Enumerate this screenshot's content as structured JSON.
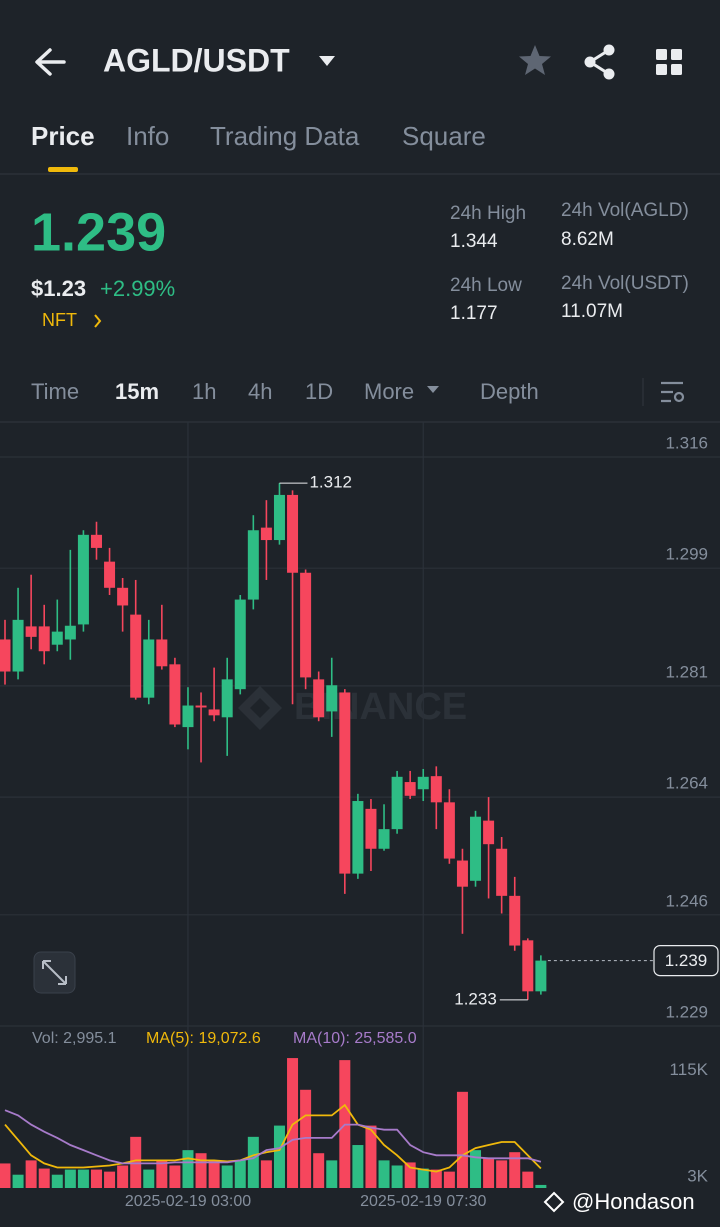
{
  "header": {
    "pair": "AGLD/USDT"
  },
  "tabs": [
    "Price",
    "Info",
    "Trading Data",
    "Square"
  ],
  "ticker": {
    "price": "1.239",
    "usd": "$1.23",
    "change": "+2.99%",
    "tag": "NFT"
  },
  "stats": [
    {
      "label": "24h High",
      "value": "1.344"
    },
    {
      "label": "24h Vol(AGLD)",
      "value": "8.62M"
    },
    {
      "label": "24h Low",
      "value": "1.177"
    },
    {
      "label": "24h Vol(USDT)",
      "value": "11.07M"
    }
  ],
  "intervals": [
    "Time",
    "15m",
    "1h",
    "4h",
    "1D",
    "More",
    "Depth"
  ],
  "watermark": "BINANCE",
  "credit": "@Hondason",
  "chart_data": [
    {
      "type": "candlestick",
      "up_color": "#2ebd85",
      "down_color": "#f6465d",
      "grid": true,
      "categories": [
        null,
        null,
        null,
        null,
        null,
        null,
        null,
        null,
        null,
        null,
        null,
        null,
        null,
        null,
        "2025-02-19 03:00",
        null,
        null,
        null,
        null,
        null,
        null,
        null,
        null,
        null,
        null,
        null,
        null,
        null,
        null,
        null,
        null,
        null,
        "2025-02-19 07:30",
        null,
        null,
        null,
        null,
        null,
        null,
        null,
        null,
        null
      ],
      "open": [
        1.2881,
        1.2832,
        1.2901,
        1.2901,
        1.2873,
        1.2881,
        1.2904,
        1.3041,
        1.3,
        1.296,
        1.2919,
        1.2792,
        1.2881,
        1.2843,
        1.2747,
        1.278,
        1.2774,
        1.2762,
        1.2805,
        1.2942,
        1.3052,
        1.3033,
        1.3102,
        1.2983,
        1.282,
        1.2771,
        1.28,
        1.2523,
        1.2622,
        1.2561,
        1.2591,
        1.2663,
        1.2652,
        1.2672,
        1.2632,
        1.2543,
        1.2512,
        1.2604,
        1.2561,
        1.2489,
        1.2421,
        1.2343
      ],
      "high": [
        1.2911,
        1.296,
        1.298,
        1.2934,
        1.2942,
        1.3018,
        1.3048,
        1.3061,
        1.3021,
        1.2975,
        1.2972,
        1.2911,
        1.2934,
        1.2853,
        1.2808,
        1.28,
        1.2838,
        1.2853,
        1.2949,
        1.3071,
        1.3094,
        1.312,
        1.3109,
        1.2988,
        1.2832,
        1.2853,
        1.2805,
        1.2645,
        1.2637,
        1.2629,
        1.268,
        1.268,
        1.2683,
        1.2687,
        1.2652,
        1.2561,
        1.2619,
        1.264,
        1.2579,
        1.2518,
        1.2424,
        1.2398
      ],
      "low": [
        1.2812,
        1.282,
        1.2866,
        1.2843,
        1.2863,
        1.285,
        1.2893,
        1.3003,
        1.2949,
        1.2893,
        1.2789,
        1.2782,
        1.2835,
        1.2747,
        1.2713,
        1.2693,
        1.2756,
        1.2703,
        1.2797,
        1.2927,
        1.2972,
        1.3026,
        1.2782,
        1.2805,
        1.2756,
        1.2732,
        1.2492,
        1.2515,
        1.2527,
        1.2558,
        1.2584,
        1.2637,
        1.2634,
        1.2591,
        1.2538,
        1.2431,
        1.2503,
        1.2485,
        1.2462,
        1.2405,
        1.233,
        1.2338
      ],
      "close": [
        1.2832,
        1.2911,
        1.2885,
        1.2863,
        1.2893,
        1.2902,
        1.3041,
        1.3021,
        1.296,
        1.2933,
        1.2792,
        1.2881,
        1.284,
        1.2751,
        1.278,
        1.2777,
        1.2765,
        1.282,
        1.2942,
        1.3048,
        1.3033,
        1.3102,
        1.2983,
        1.2823,
        1.2762,
        1.2811,
        1.2523,
        1.2634,
        1.2561,
        1.2591,
        1.2671,
        1.2642,
        1.2671,
        1.2632,
        1.2546,
        1.2503,
        1.261,
        1.2568,
        1.2489,
        1.2413,
        1.2343,
        1.239
      ],
      "ylim": [
        1.229,
        1.316
      ],
      "yticks": [
        1.316,
        1.299,
        1.281,
        1.264,
        1.246,
        1.229
      ],
      "max_label": 1.312,
      "min_label": 1.233,
      "last_price": 1.239
    },
    {
      "type": "bar",
      "legend": [
        "Vol: 2,995.1",
        "MA(5): 19,072.6",
        "MA(10): 25,585.0"
      ],
      "legend_color": "#848e9c",
      "values": [
        24000,
        13000,
        27000,
        19000,
        13000,
        18000,
        18000,
        18000,
        16000,
        22000,
        50000,
        18000,
        27000,
        22000,
        37000,
        34000,
        27000,
        22000,
        27000,
        50000,
        27000,
        61000,
        127000,
        96000,
        34000,
        27000,
        125000,
        42000,
        61000,
        27000,
        22000,
        25000,
        19000,
        18000,
        16000,
        94000,
        37000,
        29000,
        27000,
        35000,
        16000,
        2995.1
      ],
      "series": [
        {
          "color": "#f0b90b",
          "values": [
            62000,
            47000,
            32000,
            24000,
            20000,
            20000,
            20000,
            21000,
            22000,
            24000,
            27000,
            27000,
            27000,
            27000,
            29000,
            27000,
            27000,
            26000,
            27000,
            32000,
            35000,
            37000,
            62000,
            71000,
            71000,
            71000,
            81000,
            62000,
            57000,
            42000,
            32000,
            20000,
            18000,
            16000,
            20000,
            32000,
            39000,
            42000,
            45000,
            45000,
            32000,
            19072.6
          ]
        },
        {
          "color": "#a77bca",
          "values": [
            76000,
            71000,
            62000,
            55000,
            49000,
            42000,
            37000,
            32000,
            27000,
            24000,
            24000,
            24000,
            24000,
            25000,
            25000,
            25000,
            25000,
            25000,
            27000,
            29000,
            37000,
            39000,
            47000,
            49000,
            49000,
            49000,
            62000,
            62000,
            59000,
            57000,
            57000,
            42000,
            35000,
            32000,
            32000,
            32000,
            30000,
            29000,
            29000,
            29000,
            29000,
            25585
          ]
        }
      ],
      "ylim": [
        0,
        130000
      ],
      "yticks": [
        {
          "value": 115000,
          "label": "115K"
        },
        {
          "value": 3000,
          "label": "3K"
        }
      ]
    }
  ]
}
